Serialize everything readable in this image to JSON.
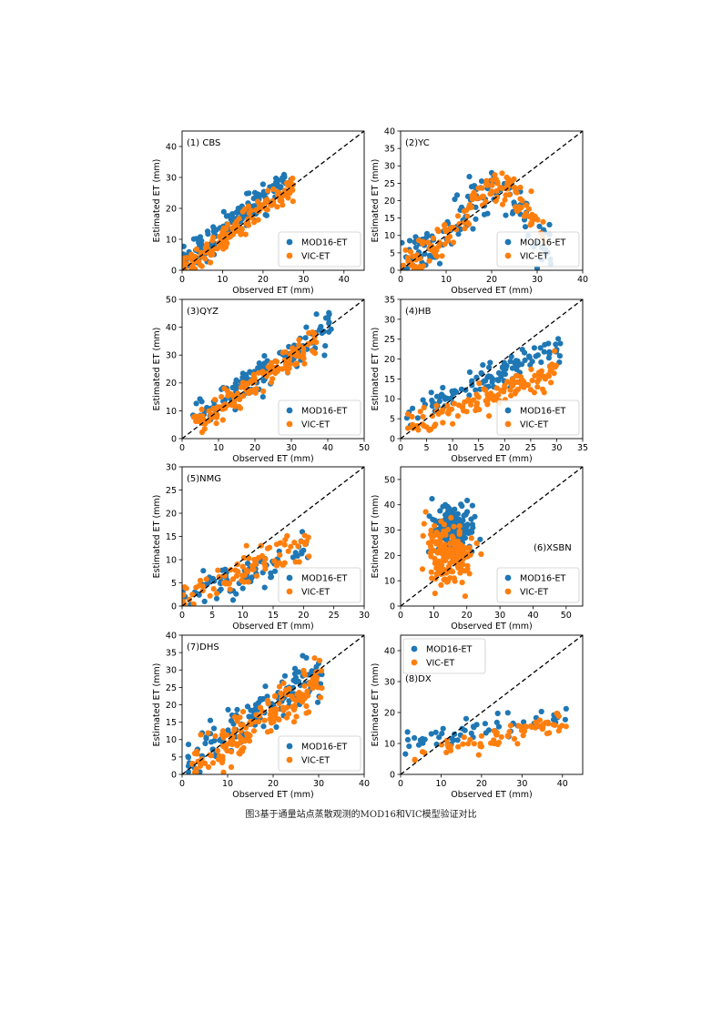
{
  "caption": "图3基于通量站点蒸散观测的MOD16和VIC模型验证对比",
  "colors": {
    "mod16": "#1f77b4",
    "vic": "#ff7f0e",
    "one_to_one": "#000000"
  },
  "chart_data": [
    {
      "type": "scatter",
      "panel_label": "(1) CBS",
      "xlabel": "Observed ET (mm)",
      "ylabel": "Estimated ET (mm)",
      "xlim": [
        0,
        45
      ],
      "ylim": [
        0,
        45
      ],
      "xticks": [
        0,
        10,
        20,
        30,
        40
      ],
      "yticks": [
        0,
        10,
        20,
        30,
        40
      ],
      "legend_position": "lower-right",
      "grid": false,
      "series": [
        {
          "name": "MOD16-ET",
          "seed": 11,
          "n": 150,
          "xmax": 27,
          "mode": "linear",
          "slope": 1.1,
          "intercept": 2,
          "noise": 3.5
        },
        {
          "name": "VIC-ET",
          "seed": 12,
          "n": 150,
          "xmax": 28,
          "mode": "linear",
          "slope": 0.95,
          "intercept": 1,
          "noise": 3.0
        }
      ]
    },
    {
      "type": "scatter",
      "panel_label": "(2)YC",
      "xlabel": "Observed ET (mm)",
      "ylabel": "Estimated ET (mm)",
      "xlim": [
        0,
        40
      ],
      "ylim": [
        0,
        40
      ],
      "xticks": [
        0,
        10,
        20,
        30,
        40
      ],
      "yticks": [
        0,
        5,
        10,
        15,
        20,
        25,
        30,
        35,
        40
      ],
      "legend_position": "lower-right",
      "grid": false,
      "series": [
        {
          "name": "MOD16-ET",
          "seed": 21,
          "n": 130,
          "xmax": 35,
          "mode": "hump",
          "peak": 20,
          "center": 20,
          "width": 10,
          "base": 3,
          "noise": 5
        },
        {
          "name": "VIC-ET",
          "seed": 22,
          "n": 150,
          "xmax": 32,
          "mode": "hump",
          "peak": 22,
          "center": 21,
          "width": 11,
          "base": 2,
          "noise": 3.5
        }
      ]
    },
    {
      "type": "scatter",
      "panel_label": "(3)QYZ",
      "xlabel": "Observed ET (mm)",
      "ylabel": "Estimated ET (mm)",
      "xlim": [
        0,
        50
      ],
      "ylim": [
        0,
        50
      ],
      "xticks": [
        0,
        10,
        20,
        30,
        40,
        50
      ],
      "yticks": [
        0,
        10,
        20,
        30,
        40,
        50
      ],
      "legend_position": "lower-right",
      "grid": false,
      "series": [
        {
          "name": "MOD16-ET",
          "seed": 31,
          "n": 130,
          "xmin": 3,
          "xmax": 41,
          "mode": "linear",
          "slope": 0.85,
          "intercept": 5,
          "noise": 5
        },
        {
          "name": "VIC-ET",
          "seed": 32,
          "n": 150,
          "xmin": 3,
          "xmax": 37,
          "mode": "linear",
          "slope": 0.9,
          "intercept": 2,
          "noise": 3.5
        }
      ]
    },
    {
      "type": "scatter",
      "panel_label": "(4)HB",
      "xlabel": "Observed ET (mm)",
      "ylabel": "Estimated ET (mm)",
      "xlim": [
        0,
        35
      ],
      "ylim": [
        0,
        35
      ],
      "xticks": [
        0,
        5,
        10,
        15,
        20,
        25,
        30,
        35
      ],
      "yticks": [
        0,
        5,
        10,
        15,
        20,
        25,
        30,
        35
      ],
      "legend_position": "lower-right",
      "grid": false,
      "series": [
        {
          "name": "MOD16-ET",
          "seed": 41,
          "n": 120,
          "xmin": 1,
          "xmax": 31,
          "mode": "linear",
          "slope": 0.6,
          "intercept": 5,
          "noise": 2.5
        },
        {
          "name": "VIC-ET",
          "seed": 42,
          "n": 130,
          "xmin": 1,
          "xmax": 30,
          "mode": "linear",
          "slope": 0.5,
          "intercept": 2,
          "noise": 2.5
        }
      ]
    },
    {
      "type": "scatter",
      "panel_label": "(5)NMG",
      "xlabel": "Observed ET (mm)",
      "ylabel": "Estimated ET (mm)",
      "xlim": [
        0,
        30
      ],
      "ylim": [
        0,
        30
      ],
      "xticks": [
        0,
        5,
        10,
        15,
        20,
        25,
        30
      ],
      "yticks": [
        0,
        5,
        10,
        15,
        20,
        25,
        30
      ],
      "legend_position": "lower-right",
      "grid": false,
      "series": [
        {
          "name": "MOD16-ET",
          "seed": 51,
          "n": 75,
          "xmax": 21,
          "mode": "linear",
          "slope": 0.4,
          "intercept": 3,
          "noise": 2.5
        },
        {
          "name": "VIC-ET",
          "seed": 52,
          "n": 85,
          "xmax": 21,
          "mode": "linear",
          "slope": 0.65,
          "intercept": 1,
          "noise": 3
        }
      ]
    },
    {
      "type": "scatter",
      "panel_label": "(6)XSBN",
      "xlabel": "Observed ET (mm)",
      "ylabel": "Estimated ET (mm)",
      "xlim": [
        0,
        55
      ],
      "ylim": [
        0,
        55
      ],
      "xticks": [
        0,
        10,
        20,
        30,
        40,
        50
      ],
      "yticks": [
        0,
        10,
        20,
        30,
        40,
        50
      ],
      "legend_position": "lower-right",
      "panel_label_position": "right",
      "grid": false,
      "series": [
        {
          "name": "MOD16-ET",
          "seed": 61,
          "n": 150,
          "xmin": 1,
          "xmax": 25,
          "mode": "cluster",
          "cx": 16,
          "cy": 30,
          "sx": 4.5,
          "sy": 7
        },
        {
          "name": "VIC-ET",
          "seed": 62,
          "n": 170,
          "xmin": 1,
          "xmax": 27,
          "mode": "cluster",
          "cx": 15,
          "cy": 20,
          "sx": 5,
          "sy": 9
        }
      ]
    },
    {
      "type": "scatter",
      "panel_label": "(7)DHS",
      "xlabel": "Observed ET (mm)",
      "ylabel": "Estimated ET (mm)",
      "xlim": [
        0,
        40
      ],
      "ylim": [
        0,
        40
      ],
      "xticks": [
        0,
        10,
        20,
        30,
        40
      ],
      "yticks": [
        0,
        5,
        10,
        15,
        20,
        25,
        30,
        35,
        40
      ],
      "legend_position": "lower-right",
      "grid": false,
      "series": [
        {
          "name": "MOD16-ET",
          "seed": 71,
          "n": 130,
          "xmin": 1,
          "xmax": 31,
          "mode": "linear",
          "slope": 0.8,
          "intercept": 4,
          "noise": 4.5
        },
        {
          "name": "VIC-ET",
          "seed": 72,
          "n": 170,
          "xmin": 2,
          "xmax": 31,
          "mode": "linear",
          "slope": 0.9,
          "intercept": 0,
          "noise": 4.5
        }
      ]
    },
    {
      "type": "scatter",
      "panel_label": "(8)DX",
      "xlabel": "Observed ET (mm)",
      "ylabel": "Estimated ET (mm)",
      "xlim": [
        0,
        45
      ],
      "ylim": [
        0,
        45
      ],
      "xticks": [
        0,
        10,
        20,
        30,
        40
      ],
      "yticks": [
        0,
        10,
        20,
        30,
        40
      ],
      "legend_position": "upper-left",
      "panel_label_position": "mid-left",
      "grid": false,
      "series": [
        {
          "name": "MOD16-ET",
          "seed": 81,
          "n": 60,
          "xmin": 1,
          "xmax": 41,
          "mode": "linear",
          "slope": 0.22,
          "intercept": 10,
          "noise": 2.5
        },
        {
          "name": "VIC-ET",
          "seed": 82,
          "n": 70,
          "xmin": 1,
          "xmax": 41,
          "mode": "linear",
          "slope": 0.25,
          "intercept": 6,
          "noise": 2.5
        }
      ]
    }
  ]
}
